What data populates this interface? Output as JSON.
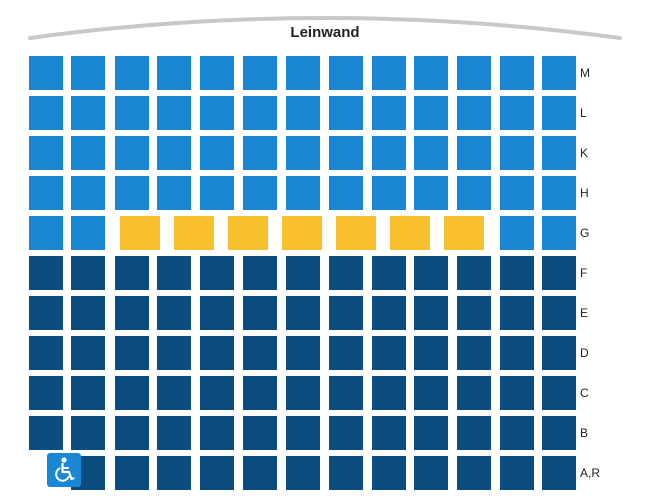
{
  "screen": {
    "label": "Leinwand"
  },
  "colors": {
    "free": "#1a87d4",
    "unavailable": "#0b4d7e",
    "selected": "#f7c02c",
    "wheelchair": "#1a87d4",
    "screen_arc": "#c8c8c8"
  },
  "rows": [
    {
      "label": "M",
      "seats": [
        "free",
        "free",
        "free",
        "free",
        "free",
        "free",
        "free",
        "free",
        "free",
        "free",
        "free",
        "free",
        "free"
      ]
    },
    {
      "label": "L",
      "seats": [
        "free",
        "free",
        "free",
        "free",
        "free",
        "free",
        "free",
        "free",
        "free",
        "free",
        "free",
        "free",
        "free"
      ]
    },
    {
      "label": "K",
      "seats": [
        "free",
        "free",
        "free",
        "free",
        "free",
        "free",
        "free",
        "free",
        "free",
        "free",
        "free",
        "free",
        "free"
      ]
    },
    {
      "label": "H",
      "seats": [
        "free",
        "free",
        "free",
        "free",
        "free",
        "free",
        "free",
        "free",
        "free",
        "free",
        "free",
        "free",
        "free"
      ]
    },
    {
      "label": "G",
      "seats": [
        "free",
        "free",
        "selected",
        "selected",
        "selected",
        "selected",
        "selected",
        "selected",
        "selected",
        "free",
        "free"
      ],
      "layout": "selected-block"
    },
    {
      "label": "F",
      "seats": [
        "unavailable",
        "unavailable",
        "unavailable",
        "unavailable",
        "unavailable",
        "unavailable",
        "unavailable",
        "unavailable",
        "unavailable",
        "unavailable",
        "unavailable",
        "unavailable",
        "unavailable"
      ]
    },
    {
      "label": "E",
      "seats": [
        "unavailable",
        "unavailable",
        "unavailable",
        "unavailable",
        "unavailable",
        "unavailable",
        "unavailable",
        "unavailable",
        "unavailable",
        "unavailable",
        "unavailable",
        "unavailable",
        "unavailable"
      ]
    },
    {
      "label": "D",
      "seats": [
        "unavailable",
        "unavailable",
        "unavailable",
        "unavailable",
        "unavailable",
        "unavailable",
        "unavailable",
        "unavailable",
        "unavailable",
        "unavailable",
        "unavailable",
        "unavailable",
        "unavailable"
      ]
    },
    {
      "label": "C",
      "seats": [
        "unavailable",
        "unavailable",
        "unavailable",
        "unavailable",
        "unavailable",
        "unavailable",
        "unavailable",
        "unavailable",
        "unavailable",
        "unavailable",
        "unavailable",
        "unavailable",
        "unavailable"
      ]
    },
    {
      "label": "B",
      "seats": [
        "unavailable",
        "unavailable",
        "unavailable",
        "unavailable",
        "unavailable",
        "unavailable",
        "unavailable",
        "unavailable",
        "unavailable",
        "unavailable",
        "unavailable",
        "unavailable",
        "unavailable"
      ]
    },
    {
      "label": "A,R",
      "seats": [
        "gap",
        "unavailable",
        "unavailable",
        "unavailable",
        "unavailable",
        "unavailable",
        "unavailable",
        "unavailable",
        "unavailable",
        "unavailable",
        "unavailable",
        "unavailable",
        "unavailable"
      ],
      "wheelchair_seat": true
    }
  ],
  "wheelchair_icon": "wheelchair-icon"
}
